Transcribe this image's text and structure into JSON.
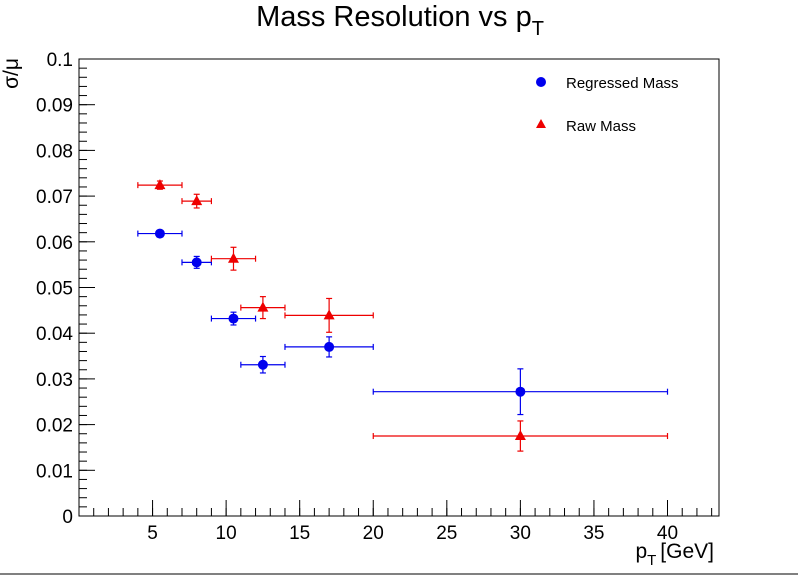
{
  "chart_data": {
    "type": "scatter",
    "title": "Mass Resolution vs p",
    "title_sub": "T",
    "xlabel": "p",
    "xlabel_sub": "T",
    "xlabel_unit": "[GeV]",
    "ylabel": "σ/μ",
    "xlim": [
      0,
      43.5
    ],
    "ylim": [
      0,
      0.1
    ],
    "x_major_ticks": [
      5,
      10,
      15,
      20,
      25,
      30,
      35,
      40
    ],
    "x_tick_labels": [
      "5",
      "10",
      "15",
      "20",
      "25",
      "30",
      "35",
      "40"
    ],
    "y_major_ticks": [
      0,
      0.01,
      0.02,
      0.03,
      0.04,
      0.05,
      0.06,
      0.07,
      0.08,
      0.09,
      0.1
    ],
    "y_tick_labels": [
      "0",
      "0.01",
      "0.02",
      "0.03",
      "0.04",
      "0.05",
      "0.06",
      "0.07",
      "0.08",
      "0.09",
      "0.1"
    ],
    "grid": false,
    "legend_position": "top-right",
    "series": [
      {
        "name": "Regressed Mass",
        "marker": "circle",
        "color": "#0000ee",
        "points": [
          {
            "x": 5.5,
            "y": 0.0618,
            "xerr": 1.5,
            "yerr": 0.0
          },
          {
            "x": 8,
            "y": 0.0555,
            "xerr": 1.0,
            "yerr": 0.0013
          },
          {
            "x": 10.5,
            "y": 0.0432,
            "xerr": 1.5,
            "yerr": 0.0014
          },
          {
            "x": 12.5,
            "y": 0.0331,
            "xerr": 1.5,
            "yerr": 0.0018
          },
          {
            "x": 17,
            "y": 0.037,
            "xerr": 3.0,
            "yerr": 0.0022
          },
          {
            "x": 30,
            "y": 0.0272,
            "xerr": 10.0,
            "yerr": 0.005
          }
        ]
      },
      {
        "name": "Raw Mass",
        "marker": "triangle",
        "color": "#ee0000",
        "points": [
          {
            "x": 5.5,
            "y": 0.0724,
            "xerr": 1.5,
            "yerr": 0.0009
          },
          {
            "x": 8,
            "y": 0.0689,
            "xerr": 1.0,
            "yerr": 0.0015
          },
          {
            "x": 10.5,
            "y": 0.0563,
            "xerr": 1.5,
            "yerr": 0.0025
          },
          {
            "x": 12.5,
            "y": 0.0456,
            "xerr": 1.5,
            "yerr": 0.0024
          },
          {
            "x": 17,
            "y": 0.0439,
            "xerr": 3.0,
            "yerr": 0.0037
          },
          {
            "x": 30,
            "y": 0.0175,
            "xerr": 10.0,
            "yerr": 0.0033
          }
        ]
      }
    ]
  }
}
